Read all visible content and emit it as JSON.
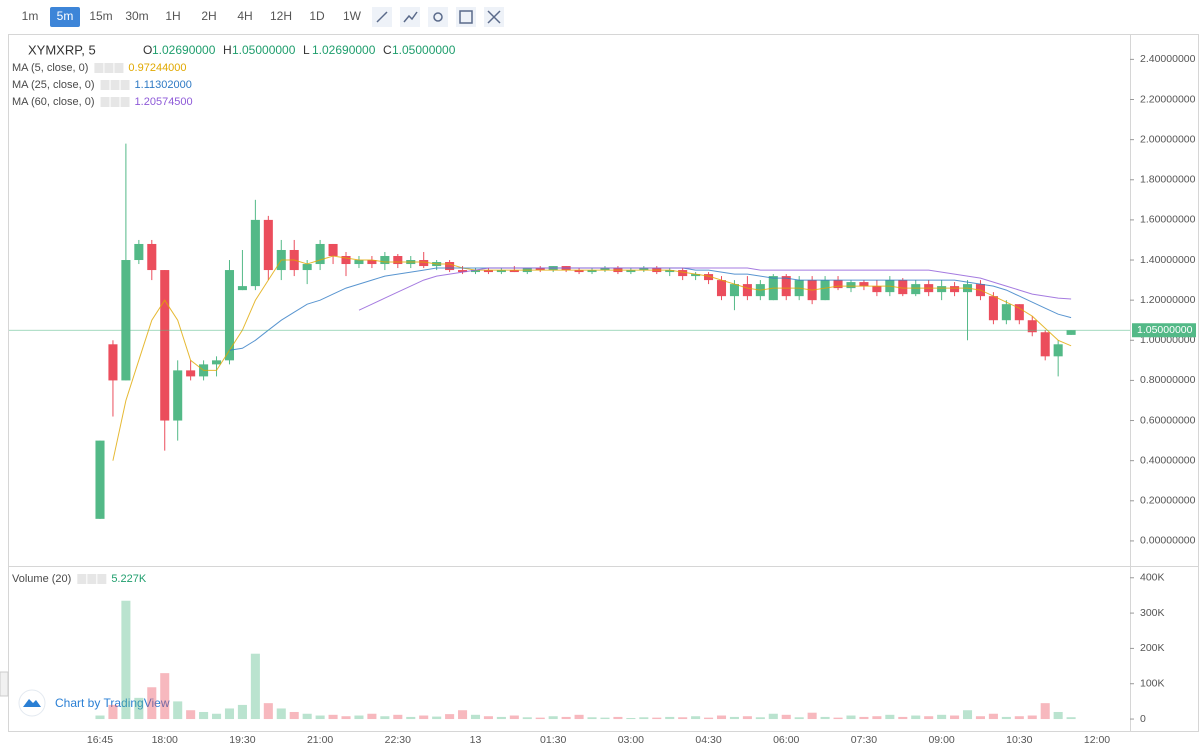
{
  "toolbar": {
    "intervals": [
      "1m",
      "5m",
      "15m",
      "30m",
      "1H",
      "2H",
      "4H",
      "12H",
      "1D",
      "1W"
    ],
    "active": "5m"
  },
  "header": {
    "symbol": "XYMXRP, 5",
    "ohlc": [
      {
        "key": "O",
        "text": "1.02690000"
      },
      {
        "key": "H",
        "text": "1.05000000"
      },
      {
        "key": "L",
        "text": "1.02690000"
      },
      {
        "key": "C",
        "text": "1.05000000"
      }
    ]
  },
  "branding": "Chart by TradingView",
  "chart_data": [
    {
      "type": "candlestick",
      "up_color": "#53b987",
      "down_color": "#eb4d5c",
      "grid": false,
      "ylim": [
        -0.12,
        2.5215
      ],
      "yticks": [
        {
          "value": 0,
          "label": "0.00000000"
        },
        {
          "value": 0.2,
          "label": "0.20000000"
        },
        {
          "value": 0.4,
          "label": "0.40000000"
        },
        {
          "value": 0.6,
          "label": "0.60000000"
        },
        {
          "value": 0.8,
          "label": "0.80000000"
        },
        {
          "value": 1.0,
          "label": "1.00000000"
        },
        {
          "value": 1.2,
          "label": "1.20000000"
        },
        {
          "value": 1.4,
          "label": "1.40000000"
        },
        {
          "value": 1.6,
          "label": "1.60000000"
        },
        {
          "value": 1.8,
          "label": "1.80000000"
        },
        {
          "value": 2.0,
          "label": "2.00000000"
        },
        {
          "value": 2.2,
          "label": "2.20000000"
        },
        {
          "value": 2.4,
          "label": "2.40000000"
        }
      ],
      "last_price": {
        "value": 1.05,
        "label": "1.05000000"
      },
      "open": [
        0.11,
        0.98,
        0.8,
        1.4,
        1.48,
        1.35,
        0.6,
        0.85,
        0.82,
        0.88,
        0.9,
        1.25,
        1.27,
        1.6,
        1.35,
        1.45,
        1.35,
        1.38,
        1.48,
        1.42,
        1.38,
        1.4,
        1.38,
        1.42,
        1.38,
        1.4,
        1.37,
        1.39,
        1.35,
        1.34,
        1.35,
        1.34,
        1.35,
        1.34,
        1.36,
        1.35,
        1.37,
        1.35,
        1.34,
        1.35,
        1.36,
        1.34,
        1.35,
        1.36,
        1.34,
        1.35,
        1.32,
        1.33,
        1.3,
        1.22,
        1.28,
        1.22,
        1.2,
        1.32,
        1.22,
        1.3,
        1.2,
        1.3,
        1.26,
        1.29,
        1.27,
        1.24,
        1.3,
        1.23,
        1.28,
        1.24,
        1.27,
        1.24,
        1.28,
        1.22,
        1.1,
        1.18,
        1.1,
        1.04,
        0.92,
        1.0269,
        null,
        null
      ],
      "high": [
        0.5,
        1.0,
        1.98,
        1.5,
        1.5,
        1.35,
        0.9,
        0.9,
        0.9,
        0.92,
        1.4,
        1.45,
        1.7,
        1.62,
        1.5,
        1.5,
        1.4,
        1.5,
        1.48,
        1.44,
        1.42,
        1.42,
        1.44,
        1.43,
        1.42,
        1.44,
        1.4,
        1.4,
        1.37,
        1.36,
        1.36,
        1.36,
        1.37,
        1.36,
        1.37,
        1.37,
        1.37,
        1.36,
        1.36,
        1.37,
        1.37,
        1.36,
        1.37,
        1.37,
        1.36,
        1.36,
        1.34,
        1.34,
        1.32,
        1.3,
        1.32,
        1.3,
        1.33,
        1.33,
        1.32,
        1.32,
        1.32,
        1.32,
        1.3,
        1.3,
        1.3,
        1.32,
        1.31,
        1.3,
        1.3,
        1.3,
        1.29,
        1.3,
        1.3,
        1.24,
        1.2,
        1.18,
        1.12,
        1.05,
        1.0,
        1.05,
        null,
        null
      ],
      "low": [
        0.11,
        0.62,
        0.8,
        1.38,
        1.3,
        0.45,
        0.5,
        0.8,
        0.8,
        0.82,
        0.88,
        1.25,
        1.25,
        1.3,
        1.3,
        1.32,
        1.28,
        1.35,
        1.38,
        1.32,
        1.36,
        1.36,
        1.35,
        1.36,
        1.36,
        1.36,
        1.35,
        1.34,
        1.33,
        1.33,
        1.33,
        1.33,
        1.34,
        1.33,
        1.34,
        1.34,
        1.34,
        1.33,
        1.33,
        1.34,
        1.33,
        1.33,
        1.34,
        1.33,
        1.32,
        1.3,
        1.3,
        1.28,
        1.2,
        1.15,
        1.2,
        1.2,
        1.2,
        1.2,
        1.2,
        1.18,
        1.2,
        1.25,
        1.24,
        1.25,
        1.22,
        1.22,
        1.22,
        1.22,
        1.22,
        1.2,
        1.22,
        1.0,
        1.2,
        1.08,
        1.08,
        1.08,
        1.02,
        0.9,
        0.82,
        1.0269,
        null,
        null
      ],
      "close": [
        0.5,
        0.8,
        1.4,
        1.48,
        1.35,
        0.6,
        0.85,
        0.82,
        0.88,
        0.9,
        1.35,
        1.27,
        1.6,
        1.35,
        1.45,
        1.35,
        1.38,
        1.48,
        1.42,
        1.38,
        1.4,
        1.38,
        1.42,
        1.38,
        1.4,
        1.37,
        1.39,
        1.35,
        1.34,
        1.35,
        1.34,
        1.35,
        1.34,
        1.36,
        1.35,
        1.37,
        1.35,
        1.34,
        1.35,
        1.36,
        1.34,
        1.35,
        1.36,
        1.34,
        1.35,
        1.32,
        1.33,
        1.3,
        1.22,
        1.28,
        1.22,
        1.28,
        1.32,
        1.22,
        1.3,
        1.2,
        1.3,
        1.26,
        1.29,
        1.27,
        1.24,
        1.3,
        1.23,
        1.28,
        1.24,
        1.27,
        1.24,
        1.28,
        1.22,
        1.1,
        1.18,
        1.1,
        1.04,
        0.92,
        0.98,
        1.05,
        null,
        null
      ],
      "series": [
        {
          "name": "MA (5, close, 0)",
          "color": "#e0a800",
          "value_label": "0.97244000",
          "values": [
            null,
            0.4,
            0.7,
            0.9,
            1.1,
            1.2,
            1.1,
            0.9,
            0.85,
            0.85,
            0.95,
            1.05,
            1.2,
            1.3,
            1.4,
            1.4,
            1.38,
            1.4,
            1.42,
            1.41,
            1.4,
            1.4,
            1.39,
            1.39,
            1.39,
            1.39,
            1.38,
            1.38,
            1.36,
            1.35,
            1.35,
            1.35,
            1.35,
            1.35,
            1.35,
            1.35,
            1.35,
            1.35,
            1.35,
            1.35,
            1.35,
            1.35,
            1.35,
            1.35,
            1.35,
            1.34,
            1.33,
            1.32,
            1.3,
            1.28,
            1.26,
            1.25,
            1.26,
            1.26,
            1.26,
            1.25,
            1.26,
            1.27,
            1.27,
            1.27,
            1.27,
            1.27,
            1.26,
            1.26,
            1.26,
            1.26,
            1.26,
            1.26,
            1.25,
            1.22,
            1.19,
            1.16,
            1.12,
            1.06,
            1.0,
            0.97244,
            null,
            null
          ]
        },
        {
          "name": "MA (25, close, 0)",
          "color": "#2f7ac4",
          "value_label": "1.11302000",
          "values": [
            null,
            null,
            null,
            null,
            null,
            null,
            null,
            null,
            null,
            null,
            0.95,
            0.96,
            1.0,
            1.05,
            1.1,
            1.14,
            1.18,
            1.2,
            1.23,
            1.26,
            1.28,
            1.3,
            1.32,
            1.33,
            1.34,
            1.35,
            1.36,
            1.36,
            1.36,
            1.36,
            1.36,
            1.36,
            1.36,
            1.36,
            1.36,
            1.36,
            1.36,
            1.36,
            1.36,
            1.36,
            1.36,
            1.36,
            1.36,
            1.36,
            1.36,
            1.36,
            1.35,
            1.35,
            1.34,
            1.33,
            1.33,
            1.32,
            1.31,
            1.31,
            1.3,
            1.3,
            1.3,
            1.3,
            1.3,
            1.3,
            1.3,
            1.3,
            1.3,
            1.3,
            1.3,
            1.3,
            1.3,
            1.29,
            1.28,
            1.27,
            1.25,
            1.22,
            1.19,
            1.16,
            1.13,
            1.11302,
            null,
            null
          ]
        },
        {
          "name": "MA (60, close, 0)",
          "color": "#8e5ad8",
          "value_label": "1.20574500",
          "values": [
            null,
            null,
            null,
            null,
            null,
            null,
            null,
            null,
            null,
            null,
            null,
            null,
            null,
            null,
            null,
            null,
            null,
            null,
            null,
            null,
            1.15,
            1.18,
            1.21,
            1.24,
            1.27,
            1.3,
            1.32,
            1.33,
            1.34,
            1.35,
            1.36,
            1.36,
            1.36,
            1.36,
            1.36,
            1.36,
            1.36,
            1.36,
            1.36,
            1.36,
            1.36,
            1.36,
            1.36,
            1.36,
            1.36,
            1.36,
            1.36,
            1.36,
            1.36,
            1.36,
            1.36,
            1.35,
            1.35,
            1.35,
            1.35,
            1.35,
            1.35,
            1.35,
            1.35,
            1.35,
            1.35,
            1.35,
            1.35,
            1.35,
            1.35,
            1.34,
            1.33,
            1.32,
            1.31,
            1.29,
            1.27,
            1.25,
            1.23,
            1.22,
            1.21,
            1.20574,
            null,
            null
          ]
        }
      ]
    },
    {
      "type": "bar",
      "ylim": [
        -31000,
        422000
      ],
      "yticks": [
        0,
        {
          "value": 100000,
          "label": "100K"
        },
        {
          "value": 200000,
          "label": "200K"
        },
        {
          "value": 300000,
          "label": "300K"
        },
        {
          "value": 400000,
          "label": "400K"
        }
      ],
      "categories": [
        "16:45",
        null,
        null,
        null,
        null,
        "18:00",
        null,
        null,
        null,
        null,
        null,
        "19:30",
        null,
        null,
        null,
        null,
        null,
        "21:00",
        null,
        null,
        null,
        null,
        null,
        "22:30",
        null,
        null,
        null,
        null,
        null,
        "13",
        null,
        null,
        null,
        null,
        null,
        "01:30",
        null,
        null,
        null,
        null,
        null,
        "03:00",
        null,
        null,
        null,
        null,
        null,
        "04:30",
        null,
        null,
        null,
        null,
        null,
        "06:00",
        null,
        null,
        null,
        null,
        null,
        "07:30",
        null,
        null,
        null,
        null,
        null,
        "09:00",
        null,
        null,
        null,
        null,
        null,
        "10:30",
        null,
        null,
        null,
        null,
        null,
        "12:00"
      ],
      "series": [
        {
          "name": "Volume (20)",
          "value_label": "5.227K",
          "values": [
            10000,
            40000,
            335000,
            60000,
            90000,
            130000,
            50000,
            25000,
            20000,
            15000,
            30000,
            40000,
            185000,
            45000,
            30000,
            20000,
            15000,
            10000,
            12000,
            8000,
            10000,
            15000,
            8000,
            12000,
            6000,
            10000,
            7000,
            14000,
            25000,
            12000,
            8000,
            6000,
            10000,
            5000,
            4000,
            8000,
            6000,
            12000,
            5000,
            4000,
            6000,
            3000,
            5000,
            4000,
            6000,
            5000,
            8000,
            4000,
            10000,
            6000,
            8000,
            5000,
            15000,
            12000,
            5000,
            18000,
            6000,
            4000,
            10000,
            6000,
            8000,
            12000,
            6000,
            10000,
            8000,
            12000,
            10000,
            25000,
            8000,
            15000,
            6000,
            8000,
            10000,
            45000,
            20000,
            5227,
            null,
            null
          ]
        }
      ]
    }
  ]
}
